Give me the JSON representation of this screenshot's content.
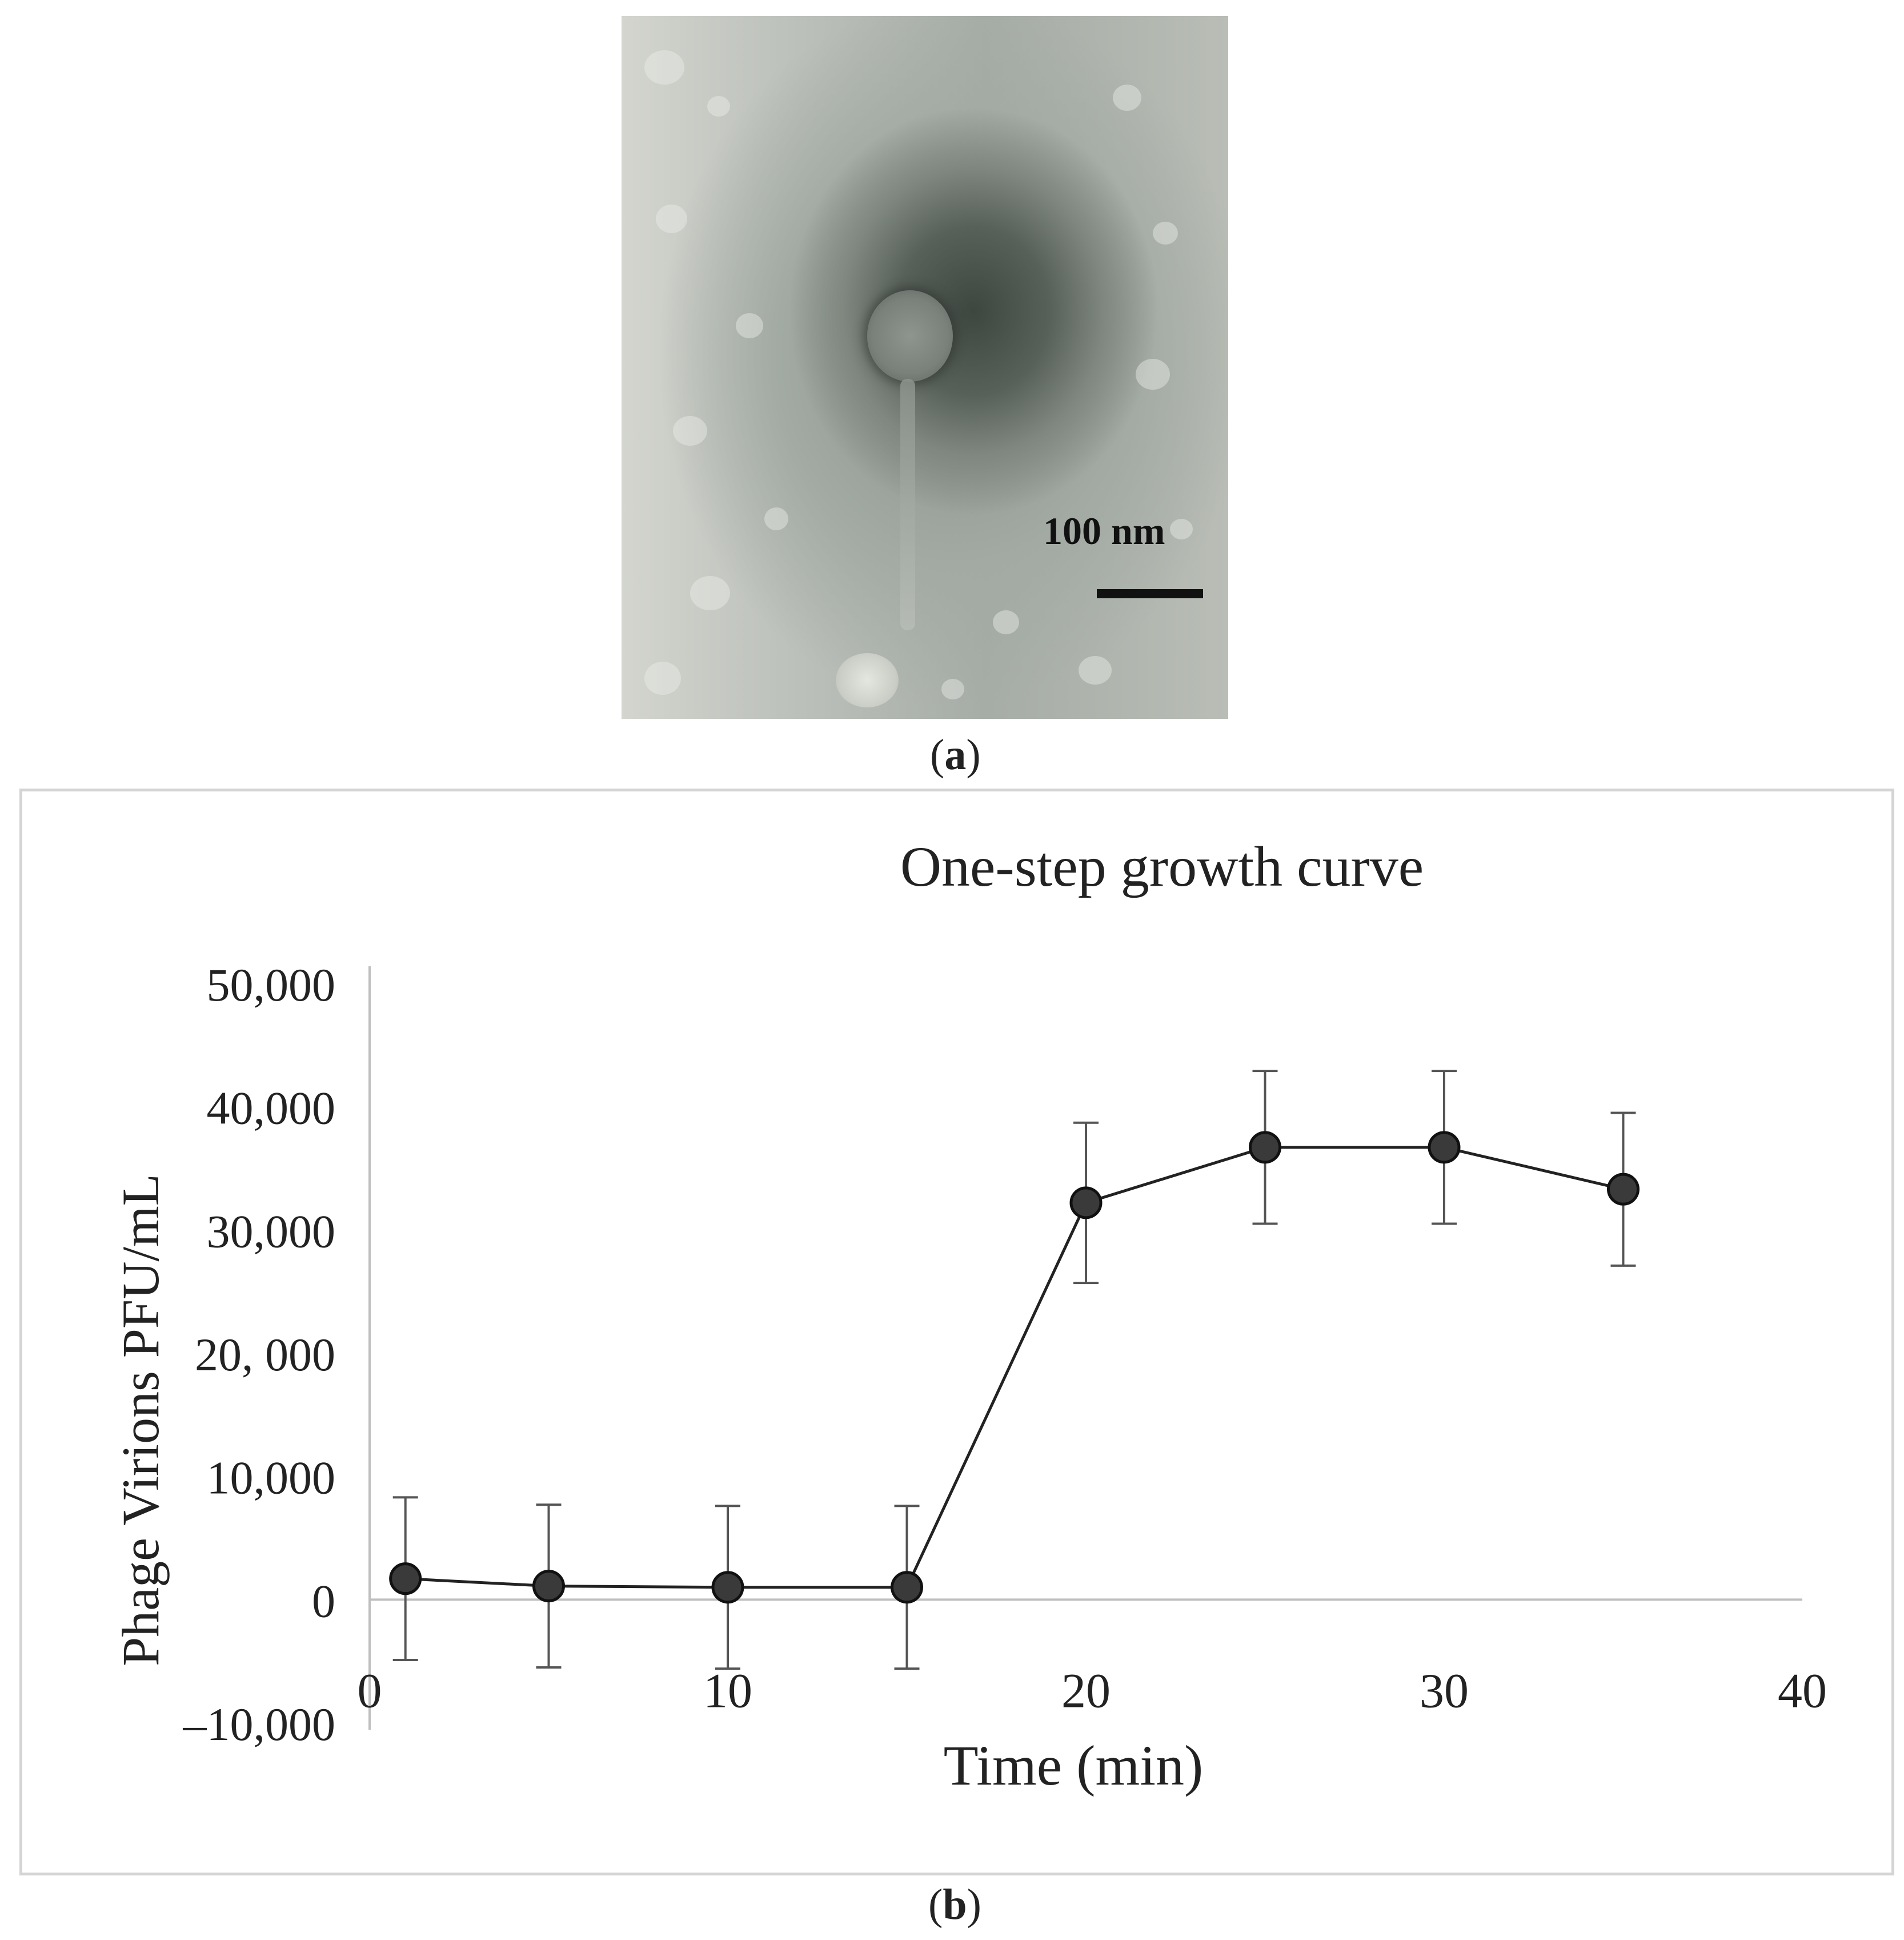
{
  "figure": {
    "panel_a_label": "a",
    "panel_b_label": "b",
    "scale_bar_text": "100 nm"
  },
  "chart_data": {
    "type": "line",
    "title": "One-step growth curve",
    "xlabel": "Time (min)",
    "ylabel": "Phage Virions PFU/mL",
    "xlim": [
      0,
      40
    ],
    "ylim": [
      -10000,
      50000
    ],
    "x_ticks": [
      "0",
      "10",
      "20",
      "30",
      "40"
    ],
    "y_ticks": [
      "–10,000",
      "0",
      "10,000",
      "20, 000",
      "30,000",
      "40,000",
      "50,000"
    ],
    "x_tick_values": [
      0,
      10,
      20,
      30,
      40
    ],
    "y_tick_values": [
      -10000,
      0,
      10000,
      20000,
      30000,
      40000,
      50000
    ],
    "grid": false,
    "legend": "none",
    "marker_color": "#3a3a3a",
    "x": [
      1,
      5,
      10,
      15,
      20,
      25,
      30,
      35
    ],
    "y": [
      1700,
      1100,
      1000,
      1000,
      32200,
      36700,
      36700,
      33300
    ],
    "error": [
      6600,
      6600,
      6600,
      6600,
      6500,
      6200,
      6200,
      6200
    ]
  }
}
